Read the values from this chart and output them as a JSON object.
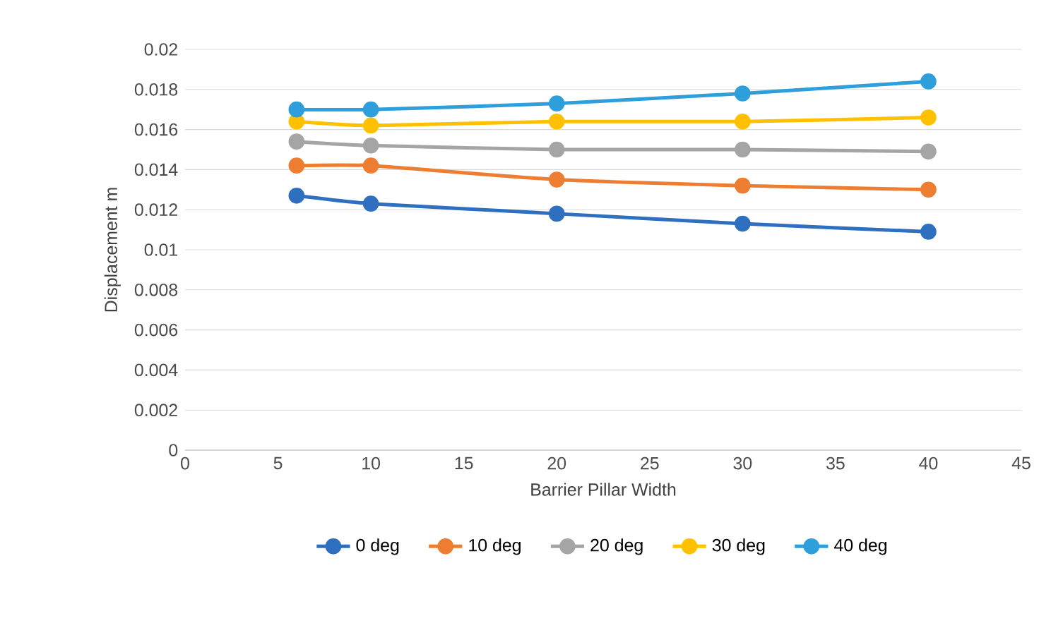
{
  "chart_data": {
    "type": "line",
    "xlabel": "Barrier Pillar Width",
    "ylabel": "Displacement m",
    "x": [
      6,
      10,
      20,
      30,
      40
    ],
    "series": [
      {
        "name": "0 deg",
        "color": "#2f6fbf",
        "values": [
          0.0127,
          0.0123,
          0.0118,
          0.0113,
          0.0109
        ]
      },
      {
        "name": "10 deg",
        "color": "#ed7d31",
        "values": [
          0.0142,
          0.0142,
          0.0135,
          0.0132,
          0.013
        ]
      },
      {
        "name": "20 deg",
        "color": "#a5a5a5",
        "values": [
          0.0154,
          0.0152,
          0.015,
          0.015,
          0.0149
        ]
      },
      {
        "name": "30 deg",
        "color": "#ffc000",
        "values": [
          0.0164,
          0.0162,
          0.0164,
          0.0164,
          0.0166
        ]
      },
      {
        "name": "40 deg",
        "color": "#2e9fda",
        "values": [
          0.017,
          0.017,
          0.0173,
          0.0178,
          0.0184
        ]
      }
    ],
    "xlim": [
      0,
      45
    ],
    "xticks": [
      0,
      5,
      10,
      15,
      20,
      25,
      30,
      35,
      40,
      45
    ],
    "ylim": [
      0,
      0.02
    ],
    "yticks": [
      0,
      0.002,
      0.004,
      0.006,
      0.008,
      0.01,
      0.012,
      0.014,
      0.016,
      0.018,
      0.02
    ],
    "grid": "y",
    "legend": "bottom",
    "marker": "circle",
    "line_style": "solid"
  }
}
